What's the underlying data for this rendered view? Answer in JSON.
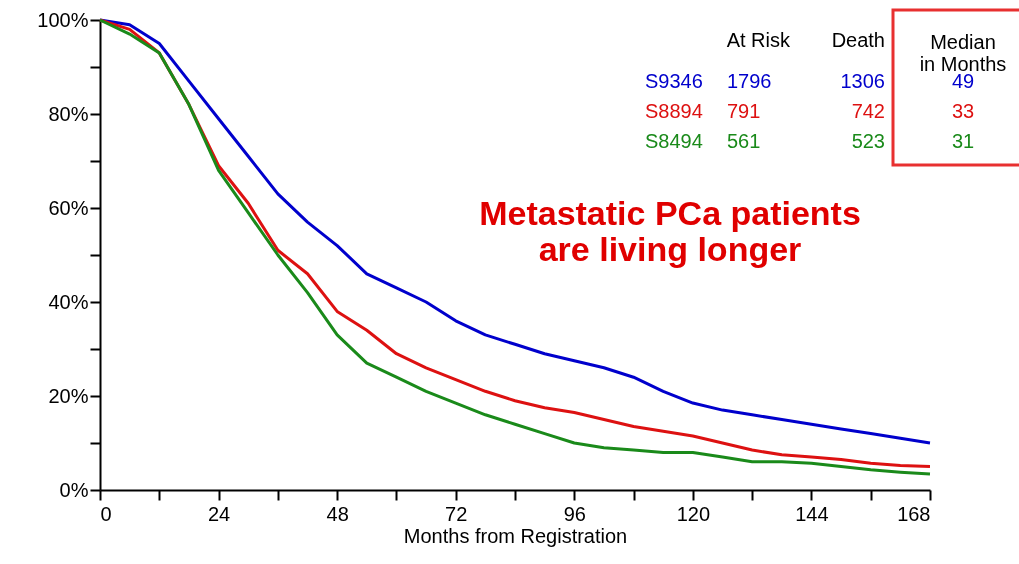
{
  "chart_data": {
    "type": "line",
    "xlabel": "Months from Registration",
    "x": [
      0,
      6,
      12,
      18,
      24,
      30,
      36,
      42,
      48,
      54,
      60,
      66,
      72,
      78,
      84,
      90,
      96,
      102,
      108,
      114,
      120,
      126,
      132,
      138,
      144,
      150,
      156,
      162,
      168
    ],
    "series": [
      {
        "name": "S9346",
        "color": "#0000cc",
        "values": [
          100,
          99,
          95,
          87,
          79,
          71,
          63,
          57,
          52,
          46,
          43,
          40,
          36,
          33,
          31,
          29,
          27.5,
          26,
          24,
          21,
          18.5,
          17,
          16,
          15,
          14,
          13,
          12,
          11,
          10
        ]
      },
      {
        "name": "S8894",
        "color": "#dd1111",
        "values": [
          100,
          98,
          93,
          82,
          69,
          61,
          51,
          46,
          38,
          34,
          29,
          26,
          23.5,
          21,
          19,
          17.5,
          16.5,
          15,
          13.5,
          12.5,
          11.5,
          10,
          8.5,
          7.5,
          7,
          6.5,
          5.7,
          5.2,
          5
        ]
      },
      {
        "name": "S8494",
        "color": "#1a8a1a",
        "values": [
          100,
          97,
          93,
          82,
          68,
          59,
          50,
          42,
          33,
          27,
          24,
          21,
          18.5,
          16,
          14,
          12,
          10,
          9,
          8.5,
          8,
          8,
          7,
          6,
          6,
          5.7,
          5,
          4.3,
          3.8,
          3.4
        ]
      }
    ],
    "xlim": [
      0,
      168
    ],
    "ylim": [
      0,
      100
    ],
    "xticks": [
      0,
      {
        "value": 12,
        "label": null
      },
      24,
      {
        "value": 36,
        "label": null
      },
      48,
      {
        "value": 60,
        "label": null
      },
      72,
      {
        "value": 84,
        "label": null
      },
      96,
      {
        "value": 108,
        "label": null
      },
      120,
      {
        "value": 132,
        "label": null
      },
      144,
      {
        "value": 156,
        "label": null
      },
      168
    ],
    "yticks": [
      {
        "value": 0,
        "label": "0%"
      },
      {
        "value": 10,
        "label": null
      },
      {
        "value": 20,
        "label": "20%"
      },
      {
        "value": 30,
        "label": null
      },
      {
        "value": 40,
        "label": "40%"
      },
      {
        "value": 50,
        "label": null
      },
      {
        "value": 60,
        "label": "60%"
      },
      {
        "value": 70,
        "label": null
      },
      {
        "value": 80,
        "label": "80%"
      },
      {
        "value": 90,
        "label": null
      },
      {
        "value": 100,
        "label": "100%"
      }
    ],
    "grid": false,
    "legend": "top right",
    "marker": "none",
    "line_style": "solid",
    "annotations": [
      "At Risk",
      "Death",
      "Median\nin Months",
      "1796",
      "1306",
      "49",
      "791",
      "742",
      "33",
      "561",
      "523",
      "31",
      "Metastatic PCa patients\nare living longer"
    ]
  }
}
